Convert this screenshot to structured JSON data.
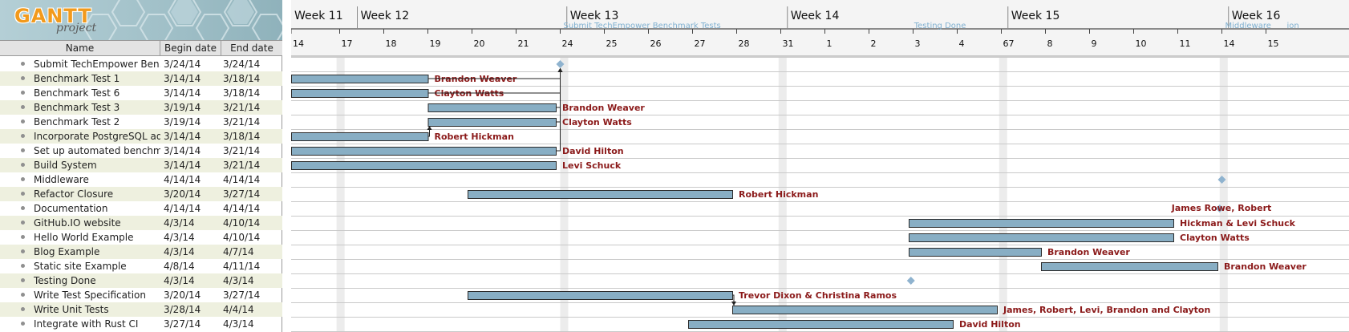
{
  "app": {
    "logo_word": "GANTT",
    "logo_sub": "project"
  },
  "table": {
    "headers": {
      "name": "Name",
      "begin": "Begin date",
      "end": "End date"
    },
    "tasks": [
      {
        "name": "Submit TechEmpower Ben...",
        "begin": "3/24/14",
        "end": "3/24/14"
      },
      {
        "name": "Benchmark Test 1",
        "begin": "3/14/14",
        "end": "3/18/14"
      },
      {
        "name": "Benchmark Test 6",
        "begin": "3/14/14",
        "end": "3/18/14"
      },
      {
        "name": "Benchmark Test 3",
        "begin": "3/19/14",
        "end": "3/21/14"
      },
      {
        "name": "Benchmark Test 2",
        "begin": "3/19/14",
        "end": "3/21/14"
      },
      {
        "name": "Incorporate PostgreSQL ad...",
        "begin": "3/14/14",
        "end": "3/18/14"
      },
      {
        "name": "Set up automated benchm...",
        "begin": "3/14/14",
        "end": "3/21/14"
      },
      {
        "name": "Build System",
        "begin": "3/14/14",
        "end": "3/21/14"
      },
      {
        "name": "Middleware",
        "begin": "4/14/14",
        "end": "4/14/14"
      },
      {
        "name": "Refactor Closure",
        "begin": "3/20/14",
        "end": "3/27/14"
      },
      {
        "name": "Documentation",
        "begin": "4/14/14",
        "end": "4/14/14"
      },
      {
        "name": "GitHub.IO website",
        "begin": "4/3/14",
        "end": "4/10/14"
      },
      {
        "name": "Hello World Example",
        "begin": "4/3/14",
        "end": "4/10/14"
      },
      {
        "name": "Blog Example",
        "begin": "4/3/14",
        "end": "4/7/14"
      },
      {
        "name": "Static site Example",
        "begin": "4/8/14",
        "end": "4/11/14"
      },
      {
        "name": "Testing Done",
        "begin": "4/3/14",
        "end": "4/3/14"
      },
      {
        "name": "Write Test Specification",
        "begin": "3/20/14",
        "end": "3/27/14"
      },
      {
        "name": "Write Unit Tests",
        "begin": "3/28/14",
        "end": "4/4/14"
      },
      {
        "name": "Integrate with Rust CI",
        "begin": "3/27/14",
        "end": "4/3/14"
      }
    ]
  },
  "timeline": {
    "weeks": [
      {
        "label": "Week 11",
        "col": 0
      },
      {
        "label": "Week 12",
        "col": 1.5
      },
      {
        "label": "Week 13",
        "col": 6.25
      },
      {
        "label": "Week 14",
        "col": 11.25
      },
      {
        "label": "Week 15",
        "col": 16.25
      },
      {
        "label": "Week 16",
        "col": 21.25
      }
    ],
    "day_ticks": [
      {
        "label": "14",
        "col": 0
      },
      {
        "label": "17",
        "col": 1.1
      },
      {
        "label": "18",
        "col": 2.1
      },
      {
        "label": "19",
        "col": 3.1
      },
      {
        "label": "20",
        "col": 4.1
      },
      {
        "label": "21",
        "col": 5.1
      },
      {
        "label": "24",
        "col": 6.1
      },
      {
        "label": "25",
        "col": 7.1
      },
      {
        "label": "26",
        "col": 8.1
      },
      {
        "label": "27",
        "col": 9.1
      },
      {
        "label": "28",
        "col": 10.1
      },
      {
        "label": "31",
        "col": 11.1
      },
      {
        "label": "1",
        "col": 12.1
      },
      {
        "label": "2",
        "col": 13.1
      },
      {
        "label": "3",
        "col": 14.1
      },
      {
        "label": "4",
        "col": 15.1
      },
      {
        "label": "67",
        "col": 16.1
      },
      {
        "label": "8",
        "col": 17.1
      },
      {
        "label": "9",
        "col": 18.1
      },
      {
        "label": "10",
        "col": 19.1
      },
      {
        "label": "11",
        "col": 20.1
      },
      {
        "label": "14",
        "col": 21.1
      },
      {
        "label": "15",
        "col": 22.1
      }
    ],
    "weekend_cols": [
      1.03,
      6.1,
      11.05,
      16.05,
      21.05
    ],
    "milestone_labels": [
      {
        "label": "Submit TechEmpower Benchmark Tests",
        "col": 6.1
      },
      {
        "label": "Testing Done",
        "col": 14.05
      },
      {
        "label": "Middleware",
        "col": 21.1
      },
      {
        "label": "ion",
        "col": 22.5
      }
    ]
  },
  "gantt": {
    "rows": [
      {
        "milestone": 6.1
      },
      {
        "start": 0,
        "end": 3.1,
        "resource": "Brandon Weaver"
      },
      {
        "start": 0,
        "end": 3.1,
        "resource": "Clayton Watts"
      },
      {
        "start": 3.1,
        "end": 6,
        "resource": "Brandon Weaver"
      },
      {
        "start": 3.1,
        "end": 6,
        "resource": "Clayton Watts"
      },
      {
        "start": 0,
        "end": 3.1,
        "resource": "Robert Hickman"
      },
      {
        "start": 0,
        "end": 6,
        "resource": "David Hilton"
      },
      {
        "start": 0,
        "end": 6,
        "resource": "Levi Schuck"
      },
      {
        "milestone": 21.1
      },
      {
        "start": 4,
        "end": 10,
        "resource": "Robert Hickman"
      },
      {
        "milestone": 21.05,
        "resource": "James Rowe, Robert"
      },
      {
        "start": 14,
        "end": 20,
        "resource": "Hickman & Levi Schuck"
      },
      {
        "start": 14,
        "end": 20,
        "resource": "Clayton Watts"
      },
      {
        "start": 14,
        "end": 17,
        "resource": "Brandon Weaver"
      },
      {
        "start": 17,
        "end": 21,
        "resource": "Brandon Weaver"
      },
      {
        "milestone": 14.05
      },
      {
        "start": 4,
        "end": 10,
        "resource": "Trevor Dixon & Christina Ramos"
      },
      {
        "start": 10,
        "end": 16,
        "resource": "James, Robert, Levi, Brandon and Clayton"
      },
      {
        "start": 9,
        "end": 15,
        "resource": "David Hilton"
      }
    ],
    "dependencies": [
      {
        "from": 1,
        "to": 0
      },
      {
        "from": 2,
        "to": 0
      },
      {
        "from": 3,
        "to": 0
      },
      {
        "from": 4,
        "to": 0
      },
      {
        "from": 6,
        "to": 0
      },
      {
        "from": 5,
        "to": 4
      },
      {
        "from": 16,
        "to": 17
      }
    ],
    "colors": {
      "bar": "#88aec4",
      "bar_border": "#2b2b2b",
      "milestone": "#8fb3cf",
      "resource_text": "#8b1a1a",
      "grid": "#c9c9c9",
      "weekend": "#ececec",
      "milestone_box": "#7fb0d0"
    }
  }
}
